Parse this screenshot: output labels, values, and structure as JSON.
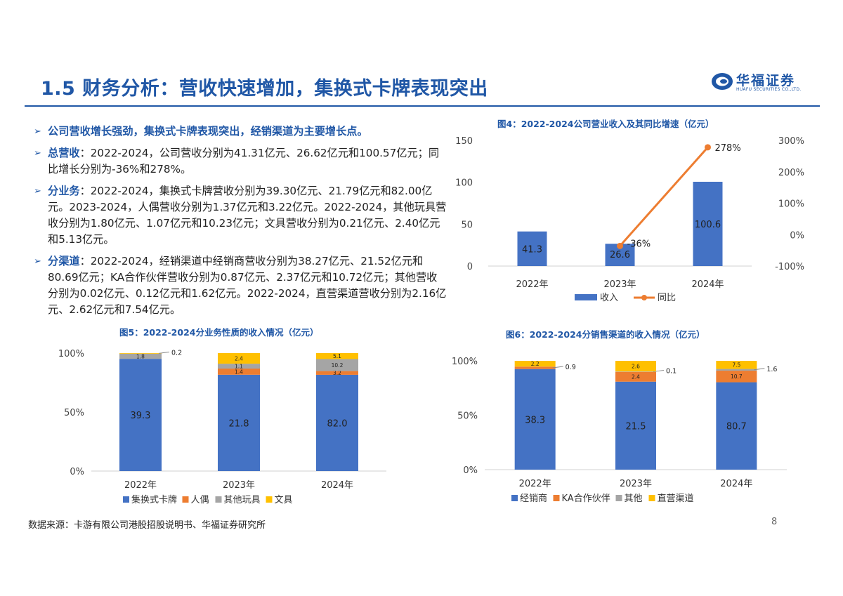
{
  "header": {
    "title": "1.5 财务分析：营收快速增加，集换式卡牌表现突出",
    "logo_name": "华福证券",
    "logo_en": "HUAFU SECURITIES CO.,LTD."
  },
  "bullets": [
    {
      "head": "",
      "text": "公司营收增长强劲，集换式卡牌表现突出，经销渠道为主要增长点。"
    },
    {
      "head": "总营收",
      "text": "：2022-2024，公司营收分别为41.31亿元、26.62亿元和100.57亿元；同比增长分别为-36%和278%。"
    },
    {
      "head": "分业务",
      "text": "：2022-2024，集换式卡牌营收分别为39.30亿元、21.79亿元和82.00亿元。2023-2024，人偶营收分别为1.37亿元和3.22亿元。2022-2024，其他玩具营收分别为1.80亿元、1.07亿元和10.23亿元；文具营收分别为0.21亿元、2.40亿元和5.13亿元。"
    },
    {
      "head": "分渠道",
      "text": "：2022-2024，经销渠道中经销商营收分别为38.27亿元、21.52亿元和80.69亿元；KA合作伙伴营收分别为0.87亿元、2.37亿元和10.72亿元；其他营收分别为0.02亿元、0.12亿元和1.62亿元。2022-2024，直营渠道营收分别为2.16亿元、2.62亿元和7.54亿元。"
    }
  ],
  "chart_data": [
    {
      "type": "bar",
      "title": "图4：2022-2024公司营业收入及其同比增速（亿元）",
      "categories": [
        "2022年",
        "2023年",
        "2024年"
      ],
      "series": [
        {
          "name": "收入",
          "type": "bar",
          "axis": "left",
          "values": [
            41.3,
            26.6,
            100.6
          ],
          "labels": [
            "41.3",
            "26.6",
            "100.6"
          ],
          "color": "#4472c4"
        },
        {
          "name": "同比",
          "type": "line",
          "axis": "right",
          "values": [
            null,
            -36,
            278
          ],
          "labels": [
            "",
            "-36%",
            "278%"
          ],
          "color": "#ed7d31"
        }
      ],
      "left_ticks": [
        "0",
        "50",
        "100",
        "150"
      ],
      "right_ticks": [
        "-100%",
        "0%",
        "100%",
        "200%",
        "300%"
      ],
      "ylim_left": [
        0,
        150
      ],
      "ylim_right": [
        -100,
        300
      ],
      "legend_position": "bottom"
    },
    {
      "type": "bar",
      "stacked": true,
      "normalized": true,
      "title": "图5：2022-2024分业务性质的收入情况（亿元）",
      "categories": [
        "2022年",
        "2023年",
        "2024年"
      ],
      "series": [
        {
          "name": "集换式卡牌",
          "values": [
            39.3,
            21.8,
            82.0
          ],
          "labels": [
            "39.3",
            "21.8",
            "82.0"
          ],
          "color": "#4472c4"
        },
        {
          "name": "人偶",
          "values": [
            0,
            1.4,
            3.2
          ],
          "labels": [
            "",
            "1.4",
            "3.2"
          ],
          "color": "#ed7d31"
        },
        {
          "name": "其他玩具",
          "values": [
            1.8,
            1.1,
            10.2
          ],
          "labels": [
            "1.8",
            "1.1",
            "10.2"
          ],
          "color": "#a5a5a5"
        },
        {
          "name": "文具",
          "values": [
            0.2,
            2.4,
            5.1
          ],
          "labels": [
            "0.2",
            "2.4",
            "5.1"
          ],
          "color": "#ffc000"
        }
      ],
      "y_ticks": [
        "0%",
        "50%",
        "100%"
      ],
      "legend_position": "bottom"
    },
    {
      "type": "bar",
      "stacked": true,
      "normalized": true,
      "title": "图6：2022-2024分销售渠道的收入情况（亿元）",
      "categories": [
        "2022年",
        "2023年",
        "2024年"
      ],
      "series": [
        {
          "name": "经销商",
          "values": [
            38.3,
            21.5,
            80.7
          ],
          "labels": [
            "38.3",
            "21.5",
            "80.7"
          ],
          "color": "#4472c4"
        },
        {
          "name": "KA合作伙伴",
          "values": [
            0.9,
            2.4,
            10.7
          ],
          "labels": [
            "0.9",
            "2.4",
            "10.7"
          ],
          "color": "#ed7d31"
        },
        {
          "name": "其他",
          "values": [
            0.02,
            0.1,
            1.6
          ],
          "labels": [
            "",
            "0.1",
            "1.6"
          ],
          "color": "#a5a5a5"
        },
        {
          "name": "直营渠道",
          "values": [
            2.2,
            2.6,
            7.5
          ],
          "labels": [
            "2.2",
            "2.6",
            "7.5"
          ],
          "color": "#ffc000"
        }
      ],
      "y_ticks": [
        "0%",
        "50%",
        "100%"
      ],
      "legend_position": "bottom"
    }
  ],
  "footer": {
    "source": "数据来源：卡游有限公司港股招股说明书、华福证券研究所",
    "page_number": "8"
  }
}
